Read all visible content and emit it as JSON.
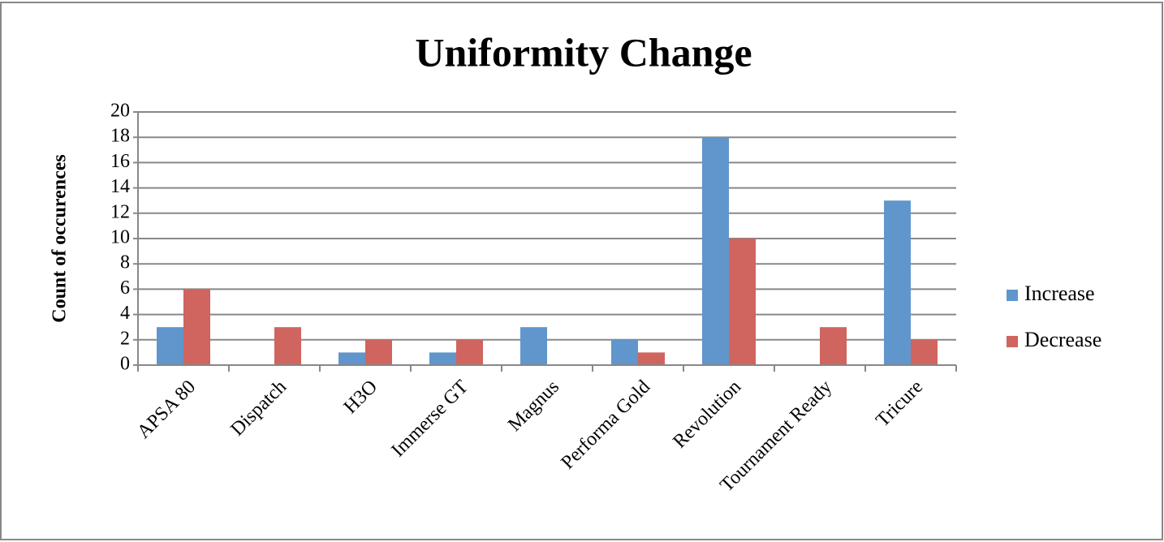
{
  "chart_data": {
    "type": "bar",
    "title": "Uniformity Change",
    "y_label": "Count of occurences",
    "categories": [
      "APSA 80",
      "Dispatch",
      "H3O",
      "Immerse GT",
      "Magnus",
      "Performa Gold",
      "Revolution",
      "Tournament Ready",
      "Tricure"
    ],
    "series": [
      {
        "name": "Increase",
        "color": "#6096cc",
        "values": [
          3,
          0,
          1,
          1,
          3,
          2,
          18,
          0,
          13
        ]
      },
      {
        "name": "Decrease",
        "color": "#d0645e",
        "values": [
          6,
          3,
          2,
          2,
          0,
          1,
          10,
          3,
          2
        ]
      }
    ],
    "ylim": [
      0,
      20
    ],
    "yticks": [
      0,
      2,
      4,
      6,
      8,
      10,
      12,
      14,
      16,
      18,
      20
    ],
    "grid": true,
    "legend": "right"
  }
}
